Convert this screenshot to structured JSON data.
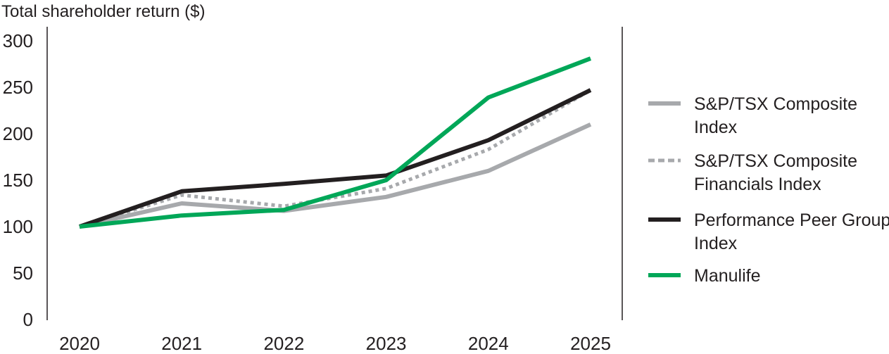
{
  "chart_data": {
    "type": "line",
    "ylabel": "Total shareholder return ($)",
    "x": [
      "2020",
      "2021",
      "2022",
      "2023",
      "2024",
      "2025"
    ],
    "yticks": [
      "0",
      "50",
      "100",
      "150",
      "200",
      "250",
      "300"
    ],
    "ylim": [
      0,
      300
    ],
    "legend_position": "right",
    "grid": false,
    "series": [
      {
        "name_lines": [
          "S&P/TSX Composite",
          "Index"
        ],
        "values": [
          100,
          125,
          117,
          132,
          160,
          210
        ],
        "color": "#a7a9ac",
        "dash": "solid"
      },
      {
        "name_lines": [
          "S&P/TSX Composite",
          "Financials Index"
        ],
        "values": [
          100,
          134,
          122,
          141,
          183,
          247
        ],
        "color": "#a7a9ac",
        "dash": "dotted"
      },
      {
        "name_lines": [
          "Performance Peer Group",
          "Index"
        ],
        "values": [
          100,
          138,
          146,
          155,
          193,
          247
        ],
        "color": "#231f20",
        "dash": "solid"
      },
      {
        "name_lines": [
          "Manulife"
        ],
        "values": [
          100,
          112,
          118,
          150,
          239,
          281
        ],
        "color": "#00a758",
        "dash": "solid"
      }
    ]
  }
}
